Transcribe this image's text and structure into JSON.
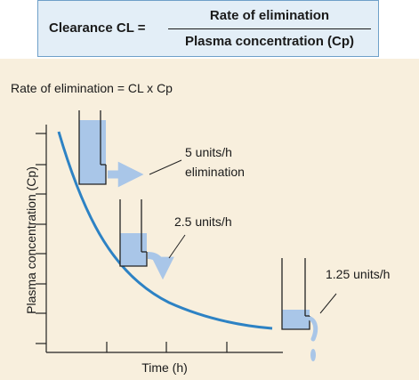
{
  "formula": {
    "lhs": "Clearance CL =",
    "numerator": "Rate of elimination",
    "denominator": "Plasma concentration (Cp)"
  },
  "equation": "Rate of elimination = CL x Cp",
  "axes": {
    "ylabel": "Plasma concentration (Cp)",
    "xlabel": "Time (h)"
  },
  "containers": [
    {
      "label_line1": "5 units/h",
      "label_line2": "elimination"
    },
    {
      "label_line1": "2.5 units/h",
      "label_line2": ""
    },
    {
      "label_line1": "1.25 units/h",
      "label_line2": ""
    }
  ],
  "colors": {
    "curve": "#2d82c4",
    "fluid": "#a9c6e8",
    "panel": "#f8efdd",
    "formula_box": "#e3eef7"
  }
}
